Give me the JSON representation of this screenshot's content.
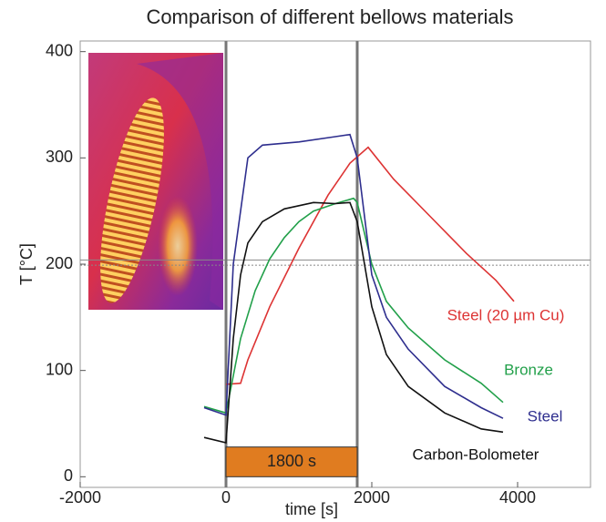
{
  "chart_data": {
    "type": "line",
    "title": "Comparison of different bellows materials",
    "x_label": "time [s]",
    "y_label": "T [°C]",
    "xlim": [
      -2000,
      5000
    ],
    "ylim": [
      -10,
      410
    ],
    "xticks": [
      -2000,
      0,
      2000,
      4000
    ],
    "yticks": [
      0,
      100,
      200,
      300,
      400
    ],
    "vlines": [
      0,
      1800
    ],
    "hlines": [
      199,
      204
    ],
    "span": {
      "start": 0,
      "end": 1800,
      "height": 28,
      "label": "1800 s",
      "color": "#e07c20"
    },
    "series": [
      {
        "name": "Steel (20 µm Cu)",
        "color": "#dd3333",
        "x": [
          0,
          200,
          300,
          600,
          1000,
          1400,
          1700,
          1950,
          2300,
          2800,
          3300,
          3700,
          3950
        ],
        "values": [
          87,
          88,
          110,
          160,
          215,
          265,
          295,
          310,
          280,
          245,
          210,
          185,
          165
        ]
      },
      {
        "name": "Bronze",
        "color": "#22a04a",
        "x": [
          -300,
          0,
          200,
          400,
          600,
          800,
          1000,
          1200,
          1500,
          1750,
          1800,
          2000,
          2200,
          2500,
          3000,
          3500,
          3800
        ],
        "values": [
          66,
          60,
          130,
          175,
          205,
          225,
          240,
          250,
          257,
          262,
          258,
          200,
          165,
          140,
          110,
          88,
          70
        ]
      },
      {
        "name": "Steel",
        "color": "#2e2e8e",
        "x": [
          -300,
          0,
          100,
          300,
          500,
          1000,
          1500,
          1700,
          1800,
          2000,
          2200,
          2500,
          3000,
          3500,
          3800
        ],
        "values": [
          65,
          58,
          200,
          300,
          312,
          315,
          320,
          322,
          300,
          190,
          150,
          120,
          85,
          65,
          55
        ]
      },
      {
        "name": "Carbon-Bolometer",
        "color": "#111111",
        "x": [
          -300,
          0,
          100,
          200,
          300,
          500,
          800,
          1200,
          1500,
          1700,
          1800,
          2000,
          2200,
          2500,
          3000,
          3500,
          3800
        ],
        "values": [
          37,
          32,
          130,
          190,
          220,
          240,
          252,
          258,
          257,
          258,
          240,
          160,
          115,
          85,
          60,
          45,
          42
        ]
      }
    ]
  }
}
